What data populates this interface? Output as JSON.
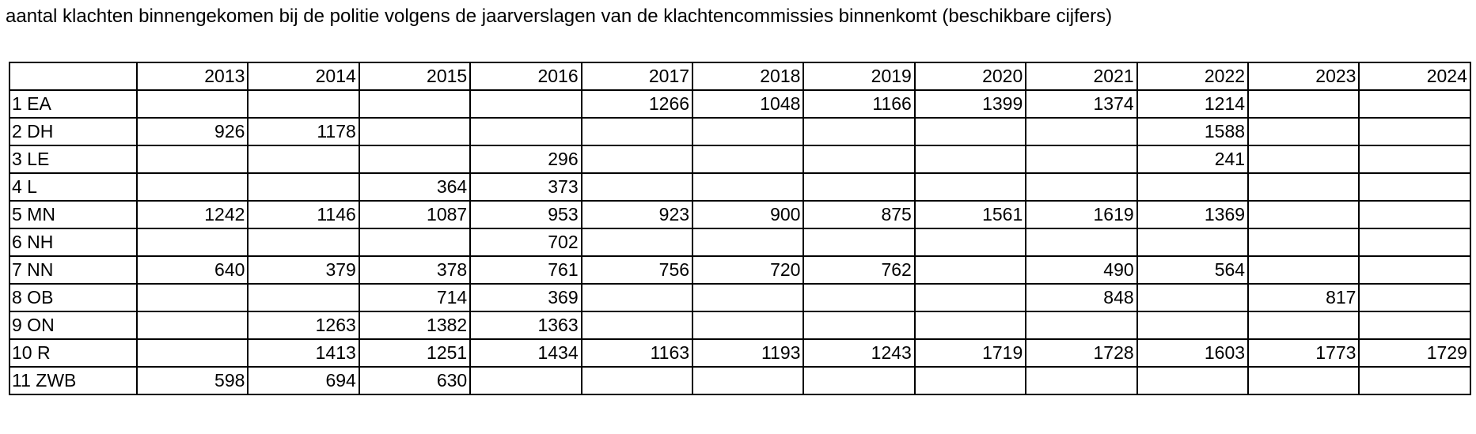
{
  "title": "aantal klachten binnengekomen bij de politie volgens de jaarverslagen van de klachtencommissies binnenkomt (beschikbare cijfers)",
  "table": {
    "corner": "",
    "years": [
      "2013",
      "2014",
      "2015",
      "2016",
      "2017",
      "2018",
      "2019",
      "2020",
      "2021",
      "2022",
      "2023",
      "2024"
    ],
    "rows": [
      {
        "label": "1 EA",
        "values": [
          "",
          "",
          "",
          "",
          "1266",
          "1048",
          "1166",
          "1399",
          "1374",
          "1214",
          "",
          ""
        ]
      },
      {
        "label": "2 DH",
        "values": [
          "926",
          "1178",
          "",
          "",
          "",
          "",
          "",
          "",
          "",
          "1588",
          "",
          ""
        ]
      },
      {
        "label": "3 LE",
        "values": [
          "",
          "",
          "",
          "296",
          "",
          "",
          "",
          "",
          "",
          "241",
          "",
          ""
        ]
      },
      {
        "label": "4 L",
        "values": [
          "",
          "",
          "364",
          "373",
          "",
          "",
          "",
          "",
          "",
          "",
          "",
          ""
        ]
      },
      {
        "label": "5 MN",
        "values": [
          "1242",
          "1146",
          "1087",
          "953",
          "923",
          "900",
          "875",
          "1561",
          "1619",
          "1369",
          "",
          ""
        ]
      },
      {
        "label": "6 NH",
        "values": [
          "",
          "",
          "",
          "702",
          "",
          "",
          "",
          "",
          "",
          "",
          "",
          ""
        ]
      },
      {
        "label": "7 NN",
        "values": [
          "640",
          "379",
          "378",
          "761",
          "756",
          "720",
          "762",
          "",
          "490",
          "564",
          "",
          ""
        ]
      },
      {
        "label": "8 OB",
        "values": [
          "",
          "",
          "714",
          "369",
          "",
          "",
          "",
          "",
          "848",
          "",
          "817",
          ""
        ]
      },
      {
        "label": "9 ON",
        "values": [
          "",
          "1263",
          "1382",
          "1363",
          "",
          "",
          "",
          "",
          "",
          "",
          "",
          ""
        ]
      },
      {
        "label": "10 R",
        "values": [
          "",
          "1413",
          "1251",
          "1434",
          "1163",
          "1193",
          "1243",
          "1719",
          "1728",
          "1603",
          "1773",
          "1729"
        ]
      },
      {
        "label": "11 ZWB",
        "values": [
          "598",
          "694",
          "630",
          "",
          "",
          "",
          "",
          "",
          "",
          "",
          "",
          ""
        ]
      }
    ]
  }
}
